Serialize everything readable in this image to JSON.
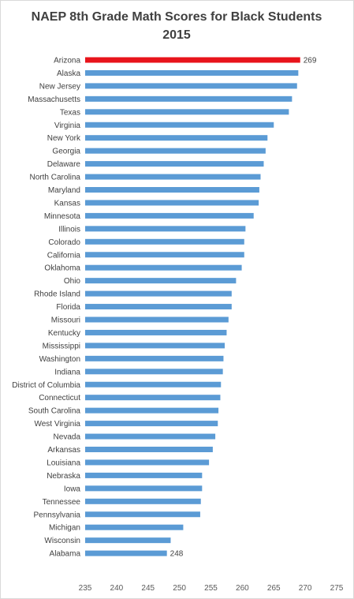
{
  "chart_data": {
    "type": "bar",
    "orientation": "horizontal",
    "title": [
      "NAEP 8th Grade Math Scores for Black Students",
      "2015"
    ],
    "xlabel": "",
    "ylabel": "",
    "xlim": [
      235,
      275
    ],
    "xticks": [
      235,
      240,
      245,
      250,
      255,
      260,
      265,
      270,
      275
    ],
    "grid": false,
    "legend": "none",
    "colors": {
      "bar": "#5b9bd5",
      "highlight": "#e8141b",
      "text": "#404040"
    },
    "highlight": "Arizona",
    "categories": [
      "Arizona",
      "Alaska",
      "New Jersey",
      "Massachusetts",
      "Texas",
      "Virginia",
      "New York",
      "Georgia",
      "Delaware",
      "North Carolina",
      "Maryland",
      "Kansas",
      "Minnesota",
      "Illinois",
      "Colorado",
      "California",
      "Oklahoma",
      "Ohio",
      "Rhode Island",
      "Florida",
      "Missouri",
      "Kentucky",
      "Mississippi",
      "Washington",
      "Indiana",
      "District of Columbia",
      "Connecticut",
      "South Carolina",
      "West Virginia",
      "Nevada",
      "Arkansas",
      "Louisiana",
      "Nebraska",
      "Iowa",
      "Tennessee",
      "Pennsylvania",
      "Michigan",
      "Wisconsin",
      "Alabama"
    ],
    "values": [
      269.2,
      268.9,
      268.7,
      267.9,
      267.4,
      265.0,
      264.0,
      263.7,
      263.4,
      262.9,
      262.7,
      262.6,
      261.8,
      260.5,
      260.3,
      260.3,
      259.9,
      259.0,
      258.3,
      258.3,
      257.8,
      257.5,
      257.2,
      257.0,
      256.9,
      256.6,
      256.5,
      256.2,
      256.1,
      255.7,
      255.3,
      254.7,
      253.6,
      253.6,
      253.4,
      253.3,
      250.6,
      248.6,
      248.0
    ],
    "data_labels": [
      {
        "category": "Arizona",
        "text": "269"
      },
      {
        "category": "Alabama",
        "text": "248"
      }
    ]
  }
}
